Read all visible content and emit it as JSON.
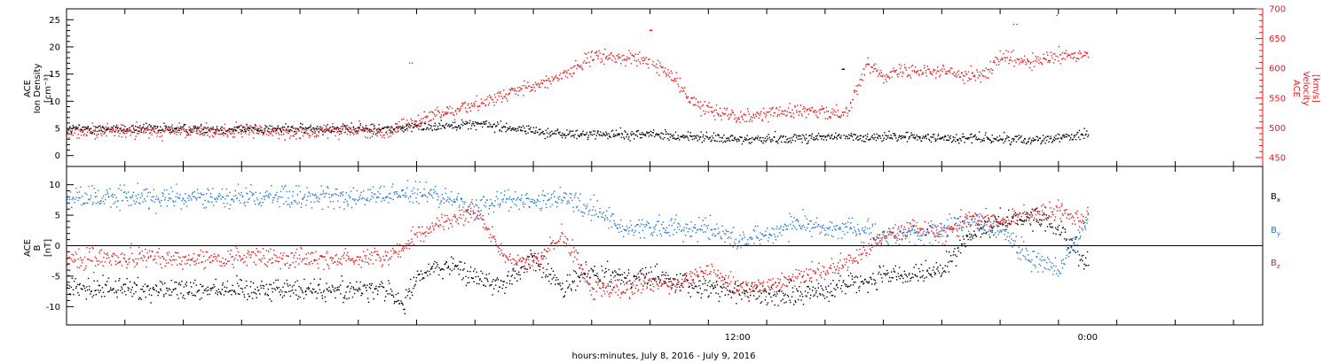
{
  "chart_data": [
    {
      "type": "scatter",
      "panel": "top",
      "ylabel": [
        "ACE",
        "Ion Density",
        "[cm⁻³]"
      ],
      "y2label": [
        "ACE",
        "Velocity",
        "[km/s]"
      ],
      "ylim": [
        -2,
        27
      ],
      "yticks": [
        0,
        5,
        10,
        15,
        20,
        25
      ],
      "y2lim": [
        435,
        700
      ],
      "y2ticks": [
        450,
        500,
        550,
        600,
        650,
        700
      ],
      "series": [
        {
          "axis": "left",
          "color": "#000000",
          "keyframes": [
            [
              0,
              5
            ],
            [
              3,
              6
            ],
            [
              6,
              4
            ],
            [
              9,
              4
            ],
            [
              12,
              3
            ],
            [
              15,
              3.5
            ],
            [
              18,
              3.5
            ],
            [
              22,
              3
            ],
            [
              24,
              4
            ]
          ],
          "noise": 0.9,
          "spikes": [
            [
              2,
              9
            ],
            [
              12.3,
              15
            ],
            [
              15.6,
              16
            ]
          ]
        },
        {
          "axis": "right",
          "name": "Velocity",
          "color": "#e31a1c",
          "keyframes": [
            [
              0,
              495
            ],
            [
              1.5,
              520
            ],
            [
              3,
              540
            ],
            [
              5,
              570
            ],
            [
              6,
              590
            ],
            [
              7,
              620
            ],
            [
              8,
              620
            ],
            [
              9,
              610
            ],
            [
              9.7,
              590
            ],
            [
              10.5,
              540
            ],
            [
              12,
              520
            ],
            [
              14,
              530
            ],
            [
              15,
              525
            ],
            [
              15.8,
              530
            ],
            [
              16,
              560
            ],
            [
              16.5,
              610
            ],
            [
              17,
              590
            ],
            [
              18,
              600
            ],
            [
              20,
              590
            ],
            [
              20.5,
              590
            ],
            [
              21,
              620
            ],
            [
              22,
              610
            ],
            [
              23,
              620
            ],
            [
              24,
              625
            ]
          ],
          "noise": 12,
          "spikes": [
            [
              0.8,
              610
            ],
            [
              9,
              665
            ],
            [
              21.5,
              675
            ],
            [
              23,
              690
            ]
          ]
        }
      ]
    },
    {
      "type": "scatter",
      "panel": "bottom",
      "ylabel": [
        "ACE",
        "B",
        "[nT]"
      ],
      "ylim": [
        -13,
        13
      ],
      "yticks": [
        -10,
        -5,
        0,
        5,
        10
      ],
      "zero_line": true,
      "legend": [
        {
          "name": "Bx",
          "sym": "B",
          "sub": "x",
          "color": "#000000"
        },
        {
          "name": "By",
          "sym": "B",
          "sub": "y",
          "color": "#1f78d1"
        },
        {
          "name": "Bz",
          "sym": "B",
          "sub": "z",
          "color": "#e31a1c"
        }
      ],
      "series": [
        {
          "name": "Bx",
          "color": "#000000",
          "keyframes": [
            [
              0,
              -7
            ],
            [
              0.5,
              -10
            ],
            [
              1,
              -5
            ],
            [
              2,
              -3
            ],
            [
              3,
              -5
            ],
            [
              4,
              -6
            ],
            [
              5,
              -2
            ],
            [
              6,
              -7
            ],
            [
              7,
              -4
            ],
            [
              8,
              -5
            ],
            [
              9,
              -5
            ],
            [
              10,
              -6
            ],
            [
              11,
              -7
            ],
            [
              12,
              -7
            ],
            [
              13,
              -8
            ],
            [
              14,
              -8
            ],
            [
              15,
              -7
            ],
            [
              16,
              -6
            ],
            [
              17,
              -5
            ],
            [
              18,
              -5
            ],
            [
              19,
              -4
            ],
            [
              20,
              2
            ],
            [
              21,
              4
            ],
            [
              22,
              5
            ],
            [
              23,
              3
            ],
            [
              24,
              -3
            ]
          ],
          "noise": 1.8
        },
        {
          "name": "By",
          "color": "#1f78d1",
          "keyframes": [
            [
              0,
              8
            ],
            [
              1,
              9
            ],
            [
              2,
              8
            ],
            [
              3,
              6
            ],
            [
              4,
              8
            ],
            [
              5,
              7
            ],
            [
              6,
              8
            ],
            [
              7,
              6
            ],
            [
              8,
              3
            ],
            [
              9,
              3
            ],
            [
              10,
              3
            ],
            [
              11,
              3
            ],
            [
              12,
              1
            ],
            [
              13,
              2
            ],
            [
              14,
              4
            ],
            [
              15,
              3
            ],
            [
              16,
              3
            ],
            [
              17,
              2
            ],
            [
              18,
              2
            ],
            [
              19,
              3
            ],
            [
              20,
              4
            ],
            [
              21,
              3
            ],
            [
              22,
              -2
            ],
            [
              23,
              -4
            ],
            [
              24,
              5
            ]
          ],
          "noise": 1.8
        },
        {
          "name": "Bz",
          "color": "#e31a1c",
          "keyframes": [
            [
              0,
              -2
            ],
            [
              1,
              2
            ],
            [
              2,
              4
            ],
            [
              3,
              6
            ],
            [
              4,
              -2
            ],
            [
              5,
              -3
            ],
            [
              6,
              2
            ],
            [
              7,
              -7
            ],
            [
              8,
              -7
            ],
            [
              9,
              -6
            ],
            [
              10,
              -6
            ],
            [
              11,
              -4
            ],
            [
              12,
              -7
            ],
            [
              13,
              -7
            ],
            [
              14,
              -5
            ],
            [
              15,
              -4
            ],
            [
              16,
              -2
            ],
            [
              17,
              2
            ],
            [
              18,
              3
            ],
            [
              19,
              2
            ],
            [
              20,
              5
            ],
            [
              21,
              4
            ],
            [
              22,
              5
            ],
            [
              23,
              6
            ],
            [
              24,
              4
            ]
          ],
          "noise": 1.6
        }
      ]
    }
  ],
  "x_axis": {
    "range_hours": [
      -11,
      30
    ],
    "minor_step_hours": 2,
    "data_range_hours": [
      -11,
      24
    ],
    "tick_labels": [
      {
        "at_hours": 12,
        "label": "12:00"
      },
      {
        "at_hours": 24,
        "label": "0:00"
      }
    ],
    "label": "hours:minutes, July  8, 2016 - July  9, 2016"
  }
}
